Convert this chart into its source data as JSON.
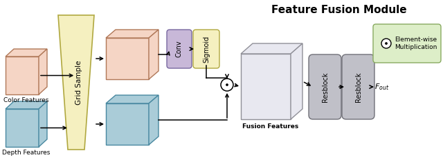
{
  "title": "Feature Fusion Module",
  "title_fontsize": 11,
  "title_fontweight": "bold",
  "bg_color": "#ffffff",
  "colors": {
    "salmon": "#f5d5c5",
    "salmon_edge": "#b07858",
    "teal": "#aaccd8",
    "teal_edge": "#4888a0",
    "yellow": "#f5f0c0",
    "yellow_edge": "#b0a840",
    "purple": "#c8b8d8",
    "purple_edge": "#7868a0",
    "gray": "#c0c0c8",
    "gray_edge": "#707078",
    "white_box": "#e8e8f0",
    "white_box_edge": "#909098",
    "green_legend": "#ddeec8",
    "green_legend_edge": "#88aa60"
  },
  "labels": {
    "color_features": "Color Features",
    "depth_features": "Depth Features",
    "grid_sample": "Grid Sample",
    "conv": "Conv",
    "sigmoid": "Sigmoid",
    "fusion_features": "Fusion Features",
    "resblock": "Resblock",
    "fout": "$F_{out}$",
    "legend": "Element-wise\nMultiplication"
  }
}
